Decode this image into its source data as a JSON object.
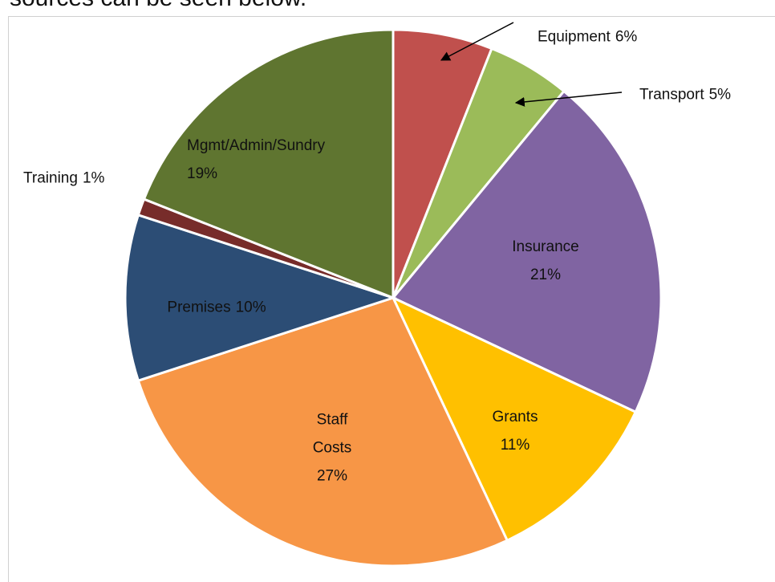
{
  "intro_text": "sources can be seen below.",
  "chart_data": {
    "type": "pie",
    "categories": [
      "Equipment",
      "Transport",
      "Insurance",
      "Grants",
      "Staff Costs",
      "Premises",
      "Training",
      "Mgmt/Admin/Sundry"
    ],
    "values": [
      6,
      5,
      21,
      11,
      27,
      10,
      1,
      19
    ],
    "value_labels": [
      "6%",
      "5%",
      "21%",
      "11%",
      "27%",
      "10%",
      "1%",
      "19%"
    ],
    "colors": [
      "#c0504d",
      "#9bbb59",
      "#8064a2",
      "#ffc000",
      "#f79646",
      "#2c4d75",
      "#772c2a",
      "#5f7530"
    ]
  }
}
